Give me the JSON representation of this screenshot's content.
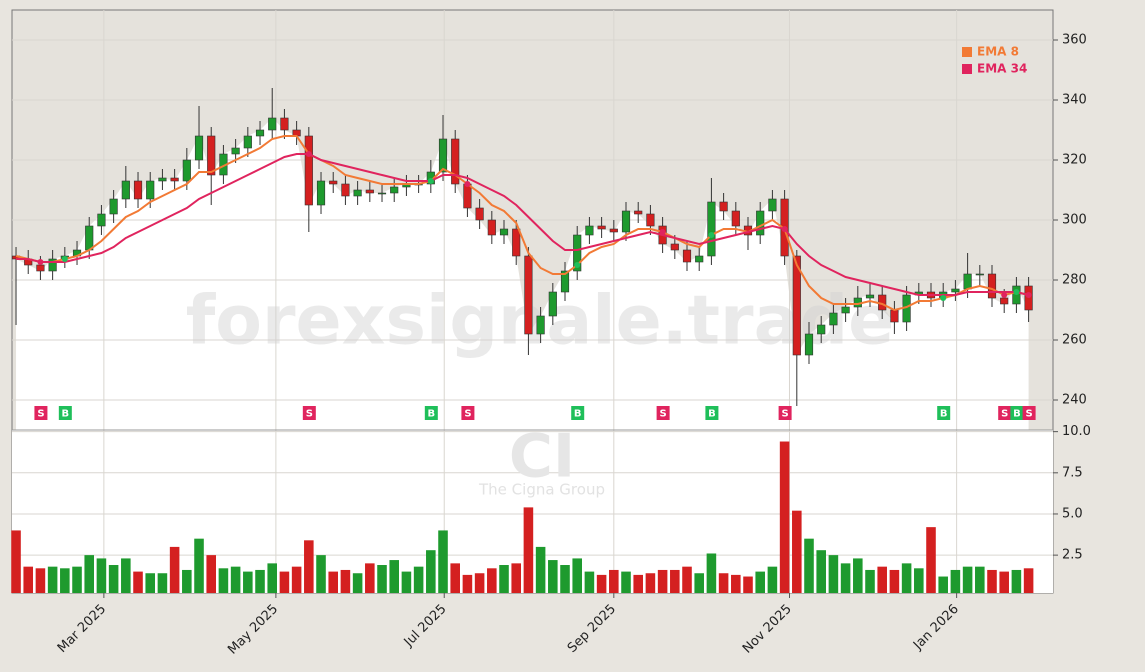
{
  "chart_data": {
    "type": "candlestick",
    "watermark": "forexsignale.trade",
    "symbol": "CI",
    "company": "The Cigna Group",
    "xlim": [
      -0.33,
      85
    ],
    "xticks": [
      {
        "value": 7.2,
        "label": "Mar 2025"
      },
      {
        "value": 21.3,
        "label": "May 2025"
      },
      {
        "value": 35.1,
        "label": "Jul 2025"
      },
      {
        "value": 49,
        "label": "Sep 2025"
      },
      {
        "value": 63.4,
        "label": "Nov 2025"
      },
      {
        "value": 77.1,
        "label": "Jan 2026"
      }
    ],
    "ylim": [
      230,
      370
    ],
    "yticks": [
      240,
      260,
      280,
      300,
      320,
      340,
      360
    ],
    "grid": true,
    "up_color": "#1e9a2e",
    "down_color": "#d42020",
    "open": [
      288,
      287,
      285,
      283,
      287,
      288,
      290,
      298,
      302,
      307,
      313,
      307,
      313,
      314,
      313,
      320,
      328,
      315,
      322,
      324,
      328,
      330,
      334,
      330,
      328,
      305,
      313,
      312,
      308,
      310,
      309,
      309,
      311,
      312,
      312,
      316,
      327,
      312,
      304,
      300,
      295,
      297,
      288,
      262,
      268,
      276,
      283,
      295,
      298,
      297,
      296,
      303,
      302,
      298,
      292,
      290,
      286,
      288,
      306,
      303,
      298,
      295,
      303,
      307,
      288,
      255,
      262,
      265,
      269,
      271,
      274,
      275,
      270,
      266,
      275,
      276,
      274,
      276,
      277,
      282,
      282,
      274,
      272,
      278
    ],
    "high": [
      291,
      290,
      288,
      290,
      291,
      293,
      301,
      305,
      310,
      318,
      316,
      316,
      317,
      317,
      324,
      338,
      331,
      325,
      327,
      331,
      333,
      344,
      337,
      333,
      331,
      316,
      316,
      315,
      313,
      313,
      312,
      314,
      315,
      315,
      320,
      335,
      330,
      315,
      307,
      303,
      300,
      300,
      291,
      271,
      279,
      286,
      298,
      301,
      301,
      300,
      306,
      306,
      305,
      301,
      295,
      293,
      291,
      314,
      309,
      306,
      301,
      306,
      310,
      310,
      290,
      266,
      268,
      272,
      274,
      278,
      279,
      278,
      273,
      278,
      279,
      279,
      279,
      280,
      289,
      285,
      285,
      277,
      281,
      281
    ],
    "low": [
      265,
      282,
      280,
      280,
      284,
      285,
      287,
      295,
      299,
      304,
      304,
      304,
      310,
      310,
      310,
      317,
      305,
      312,
      319,
      321,
      325,
      327,
      327,
      325,
      296,
      302,
      309,
      305,
      305,
      306,
      306,
      306,
      308,
      309,
      309,
      313,
      309,
      301,
      297,
      292,
      292,
      285,
      255,
      259,
      265,
      273,
      280,
      292,
      294,
      293,
      293,
      299,
      295,
      289,
      287,
      283,
      283,
      285,
      300,
      295,
      290,
      292,
      300,
      285,
      238,
      252,
      259,
      262,
      266,
      268,
      271,
      267,
      262,
      263,
      272,
      271,
      271,
      273,
      274,
      278,
      271,
      269,
      269,
      266
    ],
    "close": [
      287,
      285,
      283,
      287,
      288,
      290,
      298,
      302,
      307,
      313,
      307,
      313,
      314,
      313,
      320,
      328,
      315,
      322,
      324,
      328,
      330,
      334,
      330,
      328,
      305,
      313,
      312,
      308,
      310,
      309,
      309,
      311,
      312,
      312,
      316,
      327,
      312,
      304,
      300,
      295,
      297,
      288,
      262,
      268,
      276,
      283,
      295,
      298,
      297,
      296,
      303,
      302,
      298,
      292,
      290,
      286,
      288,
      306,
      303,
      298,
      295,
      303,
      307,
      288,
      255,
      262,
      265,
      269,
      271,
      274,
      275,
      270,
      266,
      275,
      276,
      274,
      276,
      277,
      282,
      282,
      274,
      272,
      278,
      270
    ],
    "series": [
      {
        "name": "EMA 8",
        "color": "#f27a35",
        "values": [
          288,
          287,
          286,
          286,
          287,
          288,
          290,
          293,
          297,
          301,
          303,
          306,
          308,
          310,
          312,
          316,
          316,
          318,
          320,
          322,
          324,
          327,
          328,
          328,
          322,
          320,
          318,
          315,
          314,
          313,
          312,
          312,
          312,
          312,
          313,
          317,
          315,
          312,
          309,
          305,
          303,
          299,
          289,
          284,
          282,
          282,
          285,
          289,
          291,
          292,
          295,
          297,
          297,
          296,
          294,
          292,
          291,
          295,
          297,
          297,
          296,
          298,
          300,
          297,
          285,
          278,
          274,
          272,
          272,
          272,
          273,
          272,
          270,
          271,
          273,
          273,
          274,
          275,
          277,
          278,
          277,
          275,
          276,
          275
        ]
      },
      {
        "name": "EMA 34",
        "color": "#e0245e",
        "values": [
          287,
          287,
          286,
          286,
          286,
          287,
          288,
          289,
          291,
          294,
          296,
          298,
          300,
          302,
          304,
          307,
          309,
          311,
          313,
          315,
          317,
          319,
          321,
          322,
          322,
          320,
          319,
          318,
          317,
          316,
          315,
          314,
          313,
          313,
          313,
          315,
          315,
          314,
          312,
          310,
          308,
          305,
          301,
          297,
          293,
          290,
          290,
          291,
          292,
          293,
          294,
          295,
          296,
          295,
          294,
          293,
          292,
          293,
          294,
          295,
          296,
          297,
          298,
          297,
          292,
          288,
          285,
          283,
          281,
          280,
          279,
          278,
          277,
          276,
          275,
          275,
          275,
          275,
          276,
          276,
          276,
          276,
          276,
          275
        ]
      }
    ],
    "legend": "upper right",
    "volume": {
      "ylim": [
        0.2,
        10.1
      ],
      "yticks": [
        2.5,
        {
          "value": 5,
          "label": "5.0"
        },
        7.5,
        {
          "value": 10,
          "label": "10.0"
        }
      ],
      "values": [
        4.0,
        1.8,
        1.7,
        1.8,
        1.7,
        1.8,
        2.5,
        2.3,
        1.9,
        2.3,
        1.5,
        1.4,
        1.4,
        3.0,
        1.6,
        3.5,
        2.5,
        1.7,
        1.8,
        1.5,
        1.6,
        2.0,
        1.5,
        1.8,
        3.4,
        2.5,
        1.5,
        1.6,
        1.4,
        2.0,
        1.9,
        2.2,
        1.5,
        1.8,
        2.8,
        4.0,
        2.0,
        1.3,
        1.4,
        1.7,
        1.9,
        2.0,
        5.4,
        3.0,
        2.2,
        1.9,
        2.3,
        1.5,
        1.3,
        1.6,
        1.5,
        1.3,
        1.4,
        1.6,
        1.6,
        1.8,
        1.4,
        2.6,
        1.4,
        1.3,
        1.2,
        1.5,
        1.8,
        9.4,
        5.2,
        3.5,
        2.8,
        2.5,
        2.0,
        2.3,
        1.6,
        1.8,
        1.6,
        2.0,
        1.7,
        4.2,
        1.2,
        1.6,
        1.8,
        1.8,
        1.6,
        1.5,
        1.6,
        1.7
      ]
    },
    "signals": {
      "buy_color": "#1fbf5a",
      "sell_color": "#e0245e",
      "x": [
        2,
        4,
        24,
        34,
        37,
        46,
        53,
        57,
        63,
        76,
        81,
        82,
        83
      ],
      "labels": [
        "S",
        "B",
        "S",
        "B",
        "S",
        "B",
        "S",
        "B",
        "S",
        "B",
        "S",
        "B",
        "S"
      ]
    }
  }
}
